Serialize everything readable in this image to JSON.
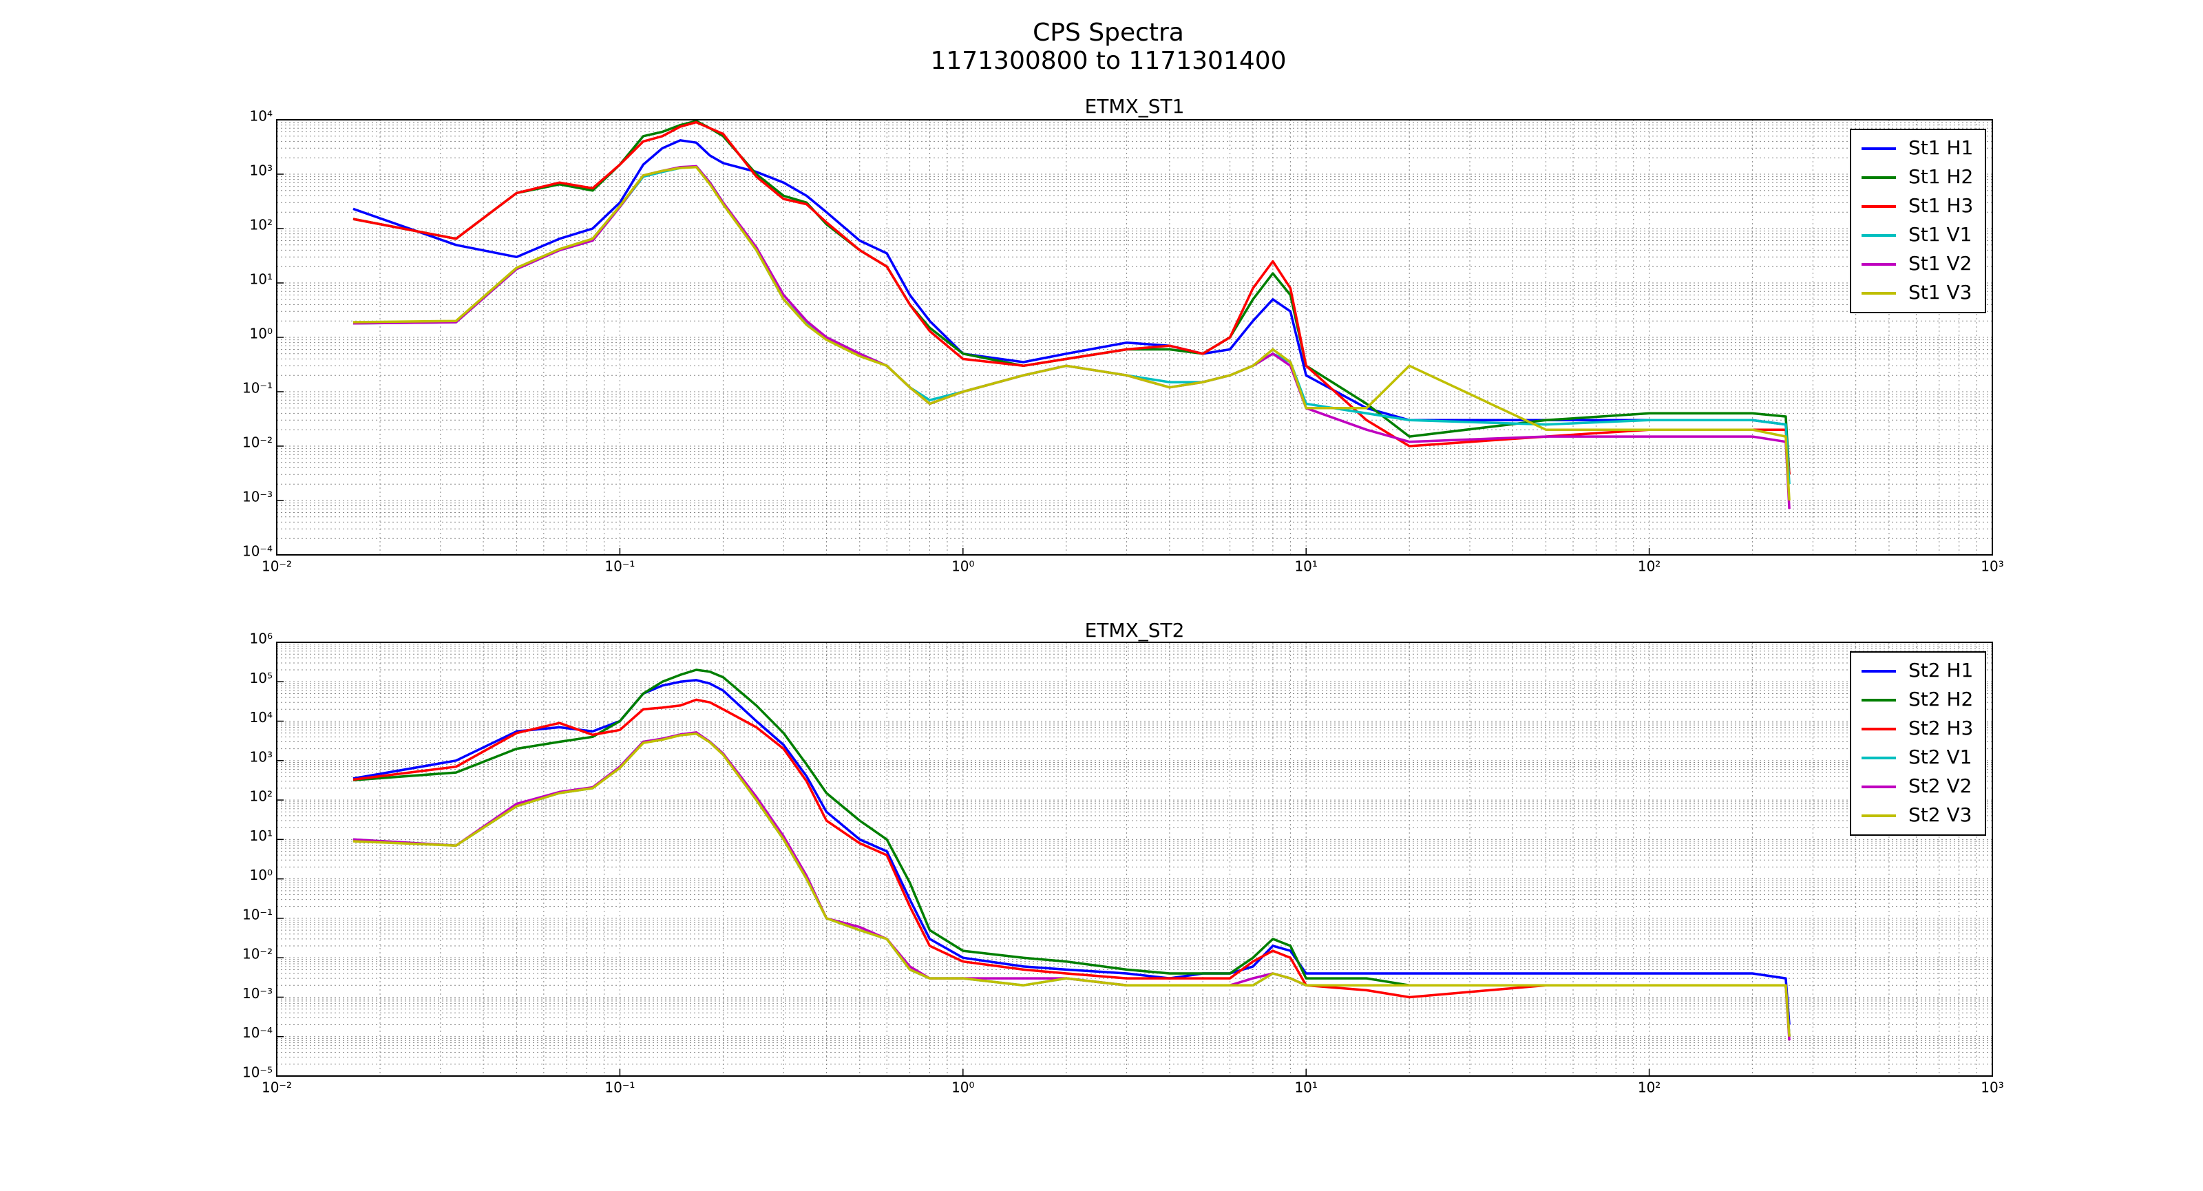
{
  "title": "CPS Spectra",
  "subtitle": "1171300800 to 1171301400",
  "chart_data": [
    {
      "type": "line",
      "title": "ETMX_ST1",
      "xscale": "log",
      "yscale": "log",
      "grid": true,
      "legend": "upper right",
      "xlim": [
        0.01,
        1000
      ],
      "ylim": [
        0.0001,
        10000
      ],
      "xticks": [
        {
          "value": 0.01,
          "label": "10⁻²"
        },
        {
          "value": 0.1,
          "label": "10⁻¹"
        },
        {
          "value": 1,
          "label": "10⁰"
        },
        {
          "value": 10,
          "label": "10¹"
        },
        {
          "value": 100,
          "label": "10²"
        },
        {
          "value": 1000,
          "label": "10³"
        }
      ],
      "yticks": [
        {
          "value": 0.0001,
          "label": "10⁻⁴"
        },
        {
          "value": 0.001,
          "label": "10⁻³"
        },
        {
          "value": 0.01,
          "label": "10⁻²"
        },
        {
          "value": 0.1,
          "label": "10⁻¹"
        },
        {
          "value": 1,
          "label": "10⁰"
        },
        {
          "value": 10,
          "label": "10¹"
        },
        {
          "value": 100,
          "label": "10²"
        },
        {
          "value": 1000,
          "label": "10³"
        },
        {
          "value": 10000,
          "label": "10⁴"
        }
      ],
      "x": [
        0.0167,
        0.0333,
        0.05,
        0.0667,
        0.0833,
        0.1,
        0.117,
        0.133,
        0.15,
        0.167,
        0.183,
        0.2,
        0.25,
        0.3,
        0.35,
        0.4,
        0.5,
        0.6,
        0.7,
        0.8,
        1,
        1.5,
        2,
        3,
        4,
        5,
        6,
        7,
        8,
        9,
        10,
        15,
        20,
        50,
        100,
        200,
        250,
        256
      ],
      "series": [
        {
          "name": "St1 H1",
          "color": "#0000ff",
          "values": [
            230,
            50,
            30,
            65,
            100,
            300,
            1500,
            3000,
            4200,
            3800,
            2200,
            1600,
            1100,
            700,
            400,
            200,
            60,
            35,
            6,
            2,
            0.5,
            0.35,
            0.5,
            0.8,
            0.7,
            0.5,
            0.6,
            2,
            5,
            3,
            0.2,
            0.05,
            0.03,
            0.03,
            0.03,
            0.03,
            0.025,
            0.003
          ]
        },
        {
          "name": "St1 H2",
          "color": "#007f00",
          "values": [
            150,
            65,
            450,
            650,
            500,
            1500,
            5000,
            6000,
            8000,
            9500,
            7000,
            5000,
            1000,
            400,
            300,
            120,
            40,
            20,
            4,
            1.5,
            0.5,
            0.3,
            0.4,
            0.6,
            0.6,
            0.5,
            1,
            5,
            15,
            6,
            0.3,
            0.06,
            0.015,
            0.03,
            0.04,
            0.04,
            0.035,
            0.003
          ]
        },
        {
          "name": "St1 H3",
          "color": "#ff0000",
          "values": [
            150,
            65,
            450,
            700,
            550,
            1500,
            4000,
            5000,
            7500,
            9000,
            7000,
            5500,
            900,
            350,
            280,
            130,
            40,
            20,
            4,
            1.3,
            0.4,
            0.3,
            0.4,
            0.6,
            0.7,
            0.5,
            1,
            8,
            25,
            8,
            0.3,
            0.03,
            0.01,
            0.015,
            0.02,
            0.02,
            0.02,
            0.003
          ]
        },
        {
          "name": "St1 V1",
          "color": "#00bfbf",
          "values": [
            1.8,
            1.9,
            18,
            40,
            60,
            250,
            900,
            1100,
            1300,
            1400,
            700,
            300,
            40,
            5,
            1.8,
            1,
            0.5,
            0.3,
            0.12,
            0.07,
            0.1,
            0.2,
            0.3,
            0.2,
            0.15,
            0.15,
            0.2,
            0.3,
            0.5,
            0.35,
            0.06,
            0.04,
            0.03,
            0.025,
            0.03,
            0.03,
            0.025,
            0.002
          ]
        },
        {
          "name": "St1 V2",
          "color": "#bf00bf",
          "values": [
            1.8,
            1.9,
            18,
            40,
            60,
            250,
            950,
            1150,
            1350,
            1400,
            700,
            300,
            45,
            6,
            2,
            1,
            0.5,
            0.3,
            0.12,
            0.06,
            0.1,
            0.2,
            0.3,
            0.2,
            0.12,
            0.15,
            0.2,
            0.3,
            0.5,
            0.3,
            0.05,
            0.02,
            0.012,
            0.015,
            0.015,
            0.015,
            0.012,
            0.0007
          ]
        },
        {
          "name": "St1 V3",
          "color": "#bfbf00",
          "values": [
            1.9,
            2,
            19,
            42,
            65,
            260,
            950,
            1150,
            1300,
            1350,
            650,
            280,
            40,
            5,
            1.7,
            0.9,
            0.45,
            0.3,
            0.12,
            0.06,
            0.1,
            0.2,
            0.3,
            0.2,
            0.12,
            0.15,
            0.2,
            0.3,
            0.6,
            0.35,
            0.05,
            0.05,
            0.3,
            0.02,
            0.02,
            0.02,
            0.015,
            0.001
          ]
        }
      ]
    },
    {
      "type": "line",
      "title": "ETMX_ST2",
      "xscale": "log",
      "yscale": "log",
      "grid": true,
      "legend": "upper right",
      "xlim": [
        0.01,
        1000
      ],
      "ylim": [
        1e-05,
        1000000
      ],
      "xticks": [
        {
          "value": 0.01,
          "label": "10⁻²"
        },
        {
          "value": 0.1,
          "label": "10⁻¹"
        },
        {
          "value": 1,
          "label": "10⁰"
        },
        {
          "value": 10,
          "label": "10¹"
        },
        {
          "value": 100,
          "label": "10²"
        },
        {
          "value": 1000,
          "label": "10³"
        }
      ],
      "yticks": [
        {
          "value": 1e-05,
          "label": "10⁻⁵"
        },
        {
          "value": 0.0001,
          "label": "10⁻⁴"
        },
        {
          "value": 0.001,
          "label": "10⁻³"
        },
        {
          "value": 0.01,
          "label": "10⁻²"
        },
        {
          "value": 0.1,
          "label": "10⁻¹"
        },
        {
          "value": 1,
          "label": "10⁰"
        },
        {
          "value": 10,
          "label": "10¹"
        },
        {
          "value": 100,
          "label": "10²"
        },
        {
          "value": 1000,
          "label": "10³"
        },
        {
          "value": 10000,
          "label": "10⁴"
        },
        {
          "value": 100000,
          "label": "10⁵"
        },
        {
          "value": 1000000,
          "label": "10⁶"
        }
      ],
      "x": [
        0.0167,
        0.0333,
        0.05,
        0.0667,
        0.0833,
        0.1,
        0.117,
        0.133,
        0.15,
        0.167,
        0.183,
        0.2,
        0.25,
        0.3,
        0.35,
        0.4,
        0.5,
        0.6,
        0.7,
        0.8,
        1,
        1.5,
        2,
        3,
        4,
        5,
        6,
        7,
        8,
        9,
        10,
        15,
        20,
        50,
        100,
        200,
        250,
        256
      ],
      "series": [
        {
          "name": "St2 H1",
          "color": "#0000ff",
          "values": [
            350,
            1000,
            5500,
            7000,
            5500,
            10000,
            50000,
            80000,
            100000,
            110000,
            90000,
            60000,
            10000,
            2500,
            400,
            50,
            10,
            5,
            0.3,
            0.03,
            0.01,
            0.006,
            0.005,
            0.004,
            0.003,
            0.004,
            0.004,
            0.006,
            0.02,
            0.015,
            0.004,
            0.004,
            0.004,
            0.004,
            0.004,
            0.004,
            0.003,
            0.0002
          ]
        },
        {
          "name": "St2 H2",
          "color": "#007f00",
          "values": [
            320,
            500,
            2000,
            3000,
            4000,
            10000,
            50000,
            100000,
            150000,
            200000,
            180000,
            130000,
            25000,
            5000,
            800,
            150,
            30,
            10,
            0.8,
            0.05,
            0.015,
            0.01,
            0.008,
            0.005,
            0.004,
            0.004,
            0.004,
            0.01,
            0.03,
            0.02,
            0.003,
            0.003,
            0.002,
            0.002,
            0.002,
            0.002,
            0.002,
            0.0001
          ]
        },
        {
          "name": "St2 H3",
          "color": "#ff0000",
          "values": [
            330,
            700,
            5000,
            9000,
            4500,
            6000,
            20000,
            22000,
            25000,
            35000,
            30000,
            20000,
            7000,
            2000,
            300,
            30,
            8,
            4,
            0.2,
            0.02,
            0.008,
            0.005,
            0.004,
            0.003,
            0.003,
            0.003,
            0.003,
            0.008,
            0.015,
            0.01,
            0.002,
            0.0015,
            0.001,
            0.002,
            0.002,
            0.002,
            0.002,
            0.0001
          ]
        },
        {
          "name": "St2 V1",
          "color": "#00bfbf",
          "values": [
            10,
            7,
            70,
            150,
            200,
            700,
            3000,
            3500,
            4500,
            5000,
            3000,
            1500,
            100,
            10,
            1,
            0.1,
            0.05,
            0.03,
            0.005,
            0.003,
            0.003,
            0.002,
            0.003,
            0.002,
            0.002,
            0.002,
            0.002,
            0.002,
            0.004,
            0.003,
            0.002,
            0.002,
            0.002,
            0.002,
            0.002,
            0.002,
            0.002,
            0.0001
          ]
        },
        {
          "name": "St2 V2",
          "color": "#bf00bf",
          "values": [
            10,
            7,
            80,
            160,
            210,
            700,
            3000,
            3600,
            4600,
            5200,
            3000,
            1500,
            120,
            12,
            1.2,
            0.1,
            0.06,
            0.03,
            0.006,
            0.003,
            0.003,
            0.003,
            0.003,
            0.002,
            0.002,
            0.002,
            0.002,
            0.003,
            0.004,
            0.003,
            0.002,
            0.002,
            0.002,
            0.002,
            0.002,
            0.002,
            0.002,
            8e-05
          ]
        },
        {
          "name": "St2 V3",
          "color": "#bfbf00",
          "values": [
            9,
            7,
            70,
            150,
            200,
            650,
            2800,
            3400,
            4400,
            4800,
            2900,
            1400,
            100,
            10,
            1,
            0.1,
            0.05,
            0.03,
            0.005,
            0.003,
            0.003,
            0.002,
            0.003,
            0.002,
            0.002,
            0.002,
            0.002,
            0.002,
            0.004,
            0.003,
            0.002,
            0.002,
            0.002,
            0.002,
            0.002,
            0.002,
            0.002,
            0.0001
          ]
        }
      ]
    }
  ]
}
